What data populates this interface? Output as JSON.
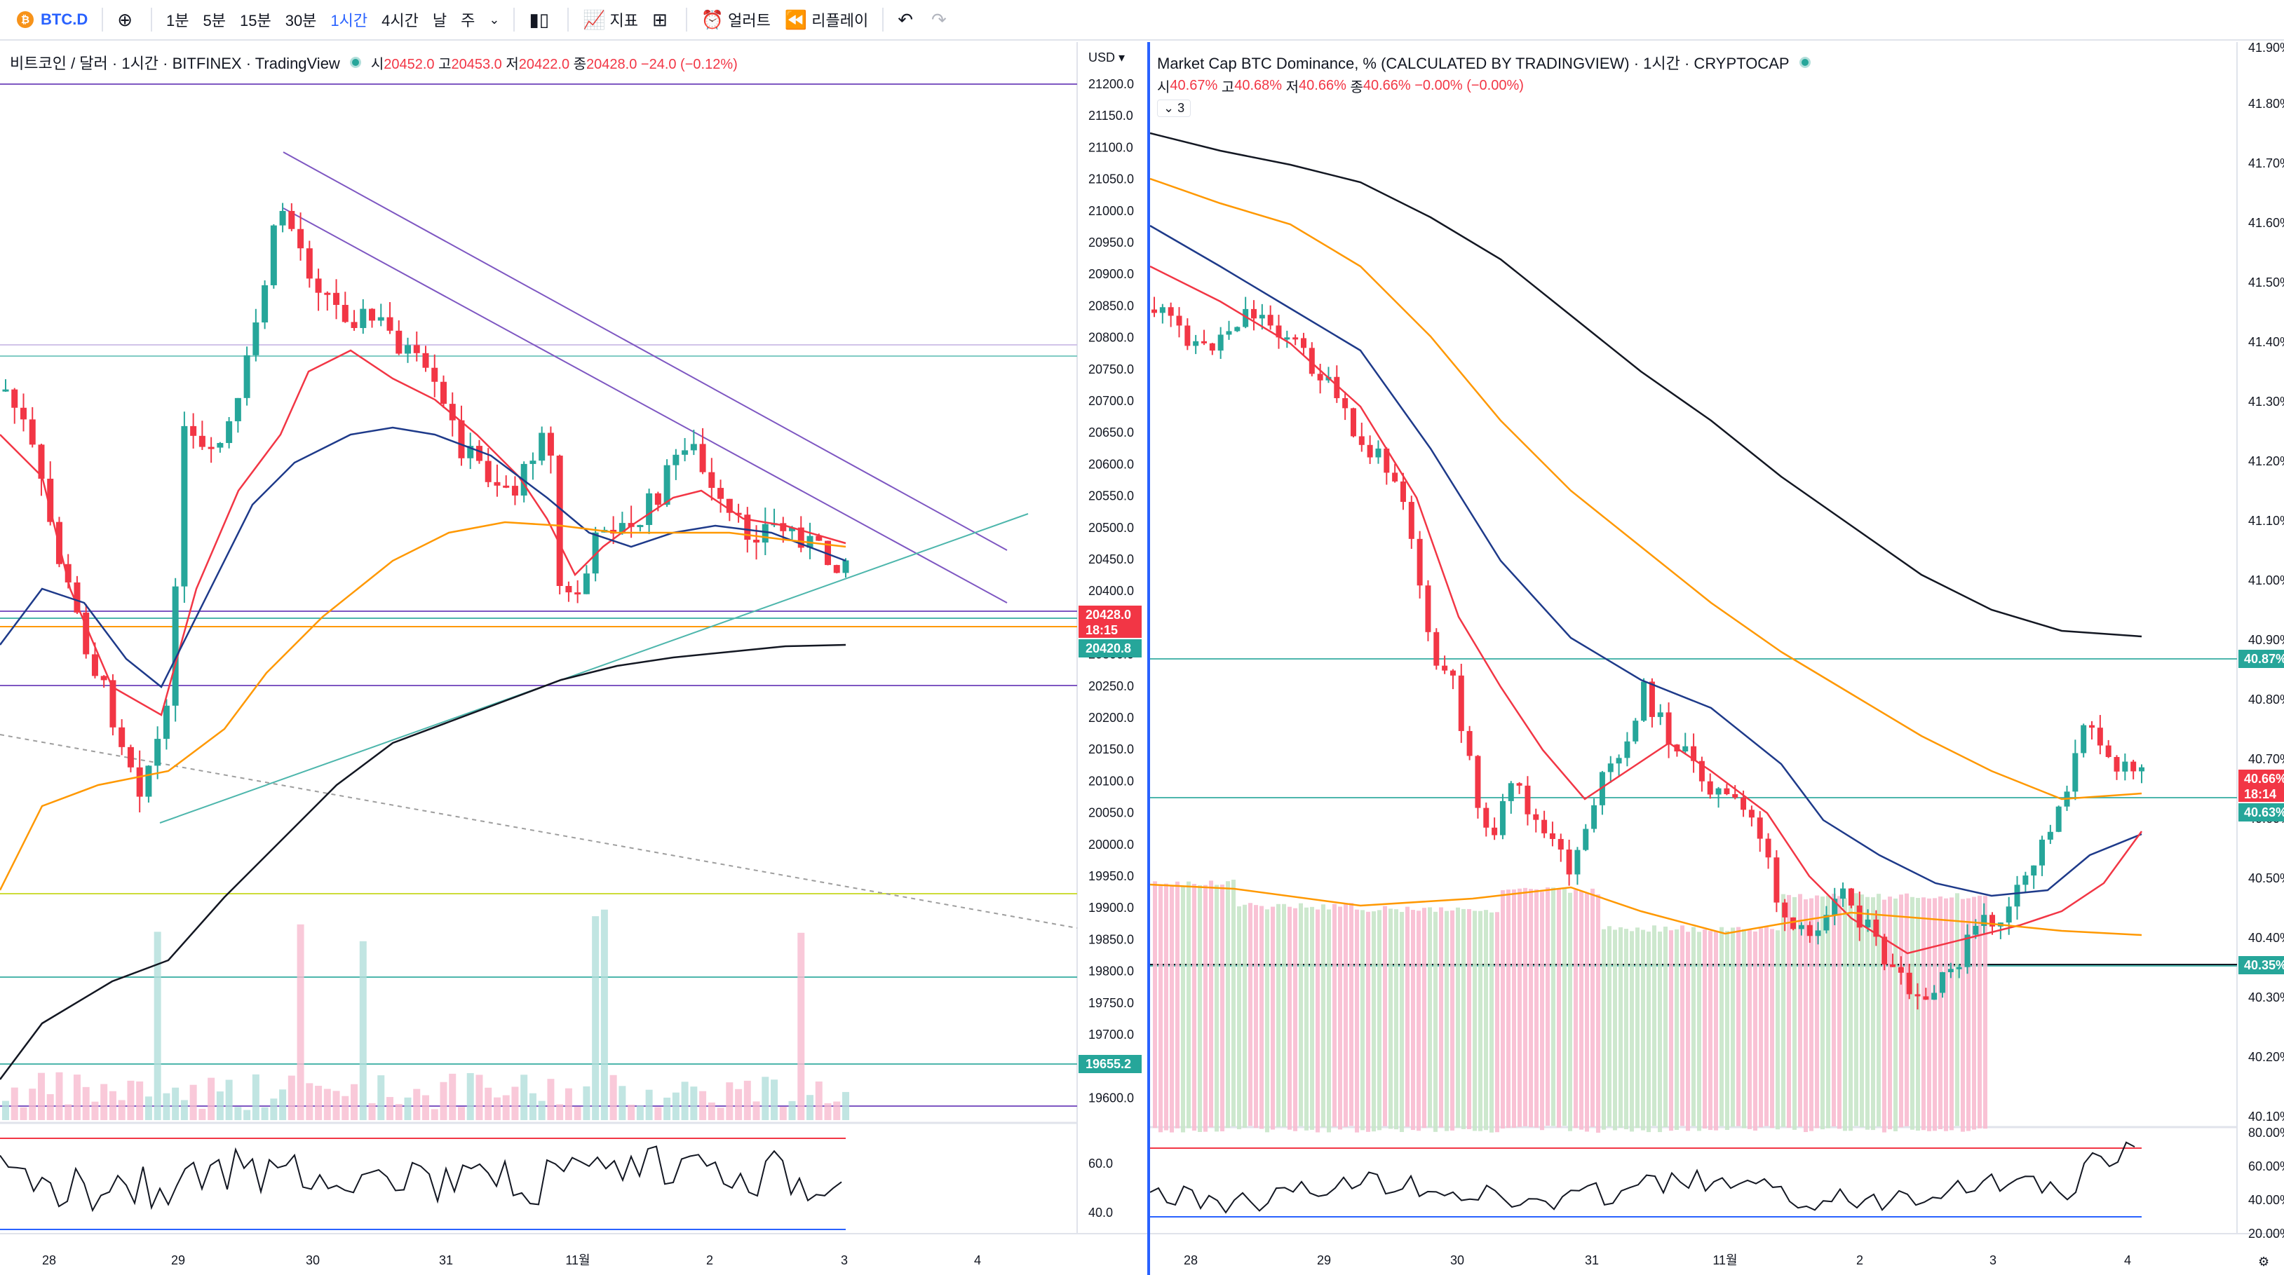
{
  "toolbar": {
    "symbol": "BTC.D",
    "symbol_icon": "bitcoin-badge-icon",
    "add_icon": "plus-circle-icon",
    "intervals": [
      "1분",
      "5분",
      "15분",
      "30분",
      "1시간",
      "4시간",
      "날",
      "주"
    ],
    "active_interval": "1시간",
    "chart_type_icon": "candlestick-icon",
    "indicators_label": "지표",
    "layout_icon": "grid-layout-icon",
    "alert_label": "얼러트",
    "replay_label": "리플레이",
    "undo_icon": "undo-icon",
    "redo_icon": "redo-icon"
  },
  "left_chart": {
    "title": "비트코인 / 달러 · 1시간 · BITFINEX · TradingView",
    "ohlc": {
      "o_label": "시",
      "o": "20452.0",
      "h_label": "고",
      "h": "20453.0",
      "l_label": "저",
      "l": "20422.0",
      "c_label": "종",
      "c": "20428.0",
      "change": "−24.0 (−0.12%)"
    },
    "currency": "USD",
    "price_ticks": [
      "21200.0",
      "21150.0",
      "21100.0",
      "21050.0",
      "21000.0",
      "20950.0",
      "20900.0",
      "20850.0",
      "20800.0",
      "20750.0",
      "20700.0",
      "20650.0",
      "20600.0",
      "20550.0",
      "20500.0",
      "20450.0",
      "20400.0",
      "20350.0",
      "20300.0",
      "20250.0",
      "20200.0",
      "20150.0",
      "20100.0",
      "20050.0",
      "20000.0",
      "19950.0",
      "19900.0",
      "19850.0",
      "19800.0",
      "19750.0",
      "19700.0",
      "19650.0",
      "19600.0"
    ],
    "last_price": "20428.0",
    "countdown": "18:15",
    "badge_2": "20420.8",
    "badge_3": "19655.2",
    "rsi_ticks": [
      "60.0",
      "40.0"
    ],
    "x_labels": [
      "28",
      "29",
      "30",
      "31",
      "11월",
      "2",
      "3",
      "4"
    ]
  },
  "right_chart": {
    "title": "Market Cap BTC Dominance, % (CALCULATED BY TRADINGVIEW) · 1시간 · CRYPTOCAP",
    "ohlc": {
      "o_label": "시",
      "o": "40.67%",
      "h_label": "고",
      "h": "40.68%",
      "l_label": "저",
      "l": "40.66%",
      "c_label": "종",
      "c": "40.66%",
      "change": "−0.00% (−0.00%)"
    },
    "collapsed_count": "3",
    "price_ticks": [
      "41.80%",
      "41.70%",
      "41.60%",
      "41.50%",
      "41.40%",
      "41.30%",
      "41.20%",
      "41.10%",
      "41.00%",
      "40.90%",
      "40.80%",
      "40.70%",
      "40.60%",
      "40.50%",
      "40.40%",
      "40.30%",
      "40.20%",
      "40.10%"
    ],
    "top_clipped_tick": "41.90%",
    "badge_high": "40.87%",
    "last_price": "40.66%",
    "countdown": "18:14",
    "badge_mid": "40.63%",
    "badge_low": "40.35%",
    "rsi_ticks": [
      "80.00%",
      "60.00%",
      "40.00%",
      "20.00%"
    ],
    "x_labels": [
      "28",
      "29",
      "30",
      "31",
      "11월",
      "2",
      "3",
      "4"
    ],
    "settings_icon": "gear-icon"
  },
  "colors": {
    "up": "#26a69a",
    "down": "#f23645",
    "ma_fast": "#f23645",
    "ma_mid": "#1e3a8a",
    "ma_orange": "#ff9800",
    "ma_long": "#131722",
    "trend_purple": "#7e57c2",
    "trend_teal": "#4db6ac",
    "accent": "#2962ff"
  }
}
